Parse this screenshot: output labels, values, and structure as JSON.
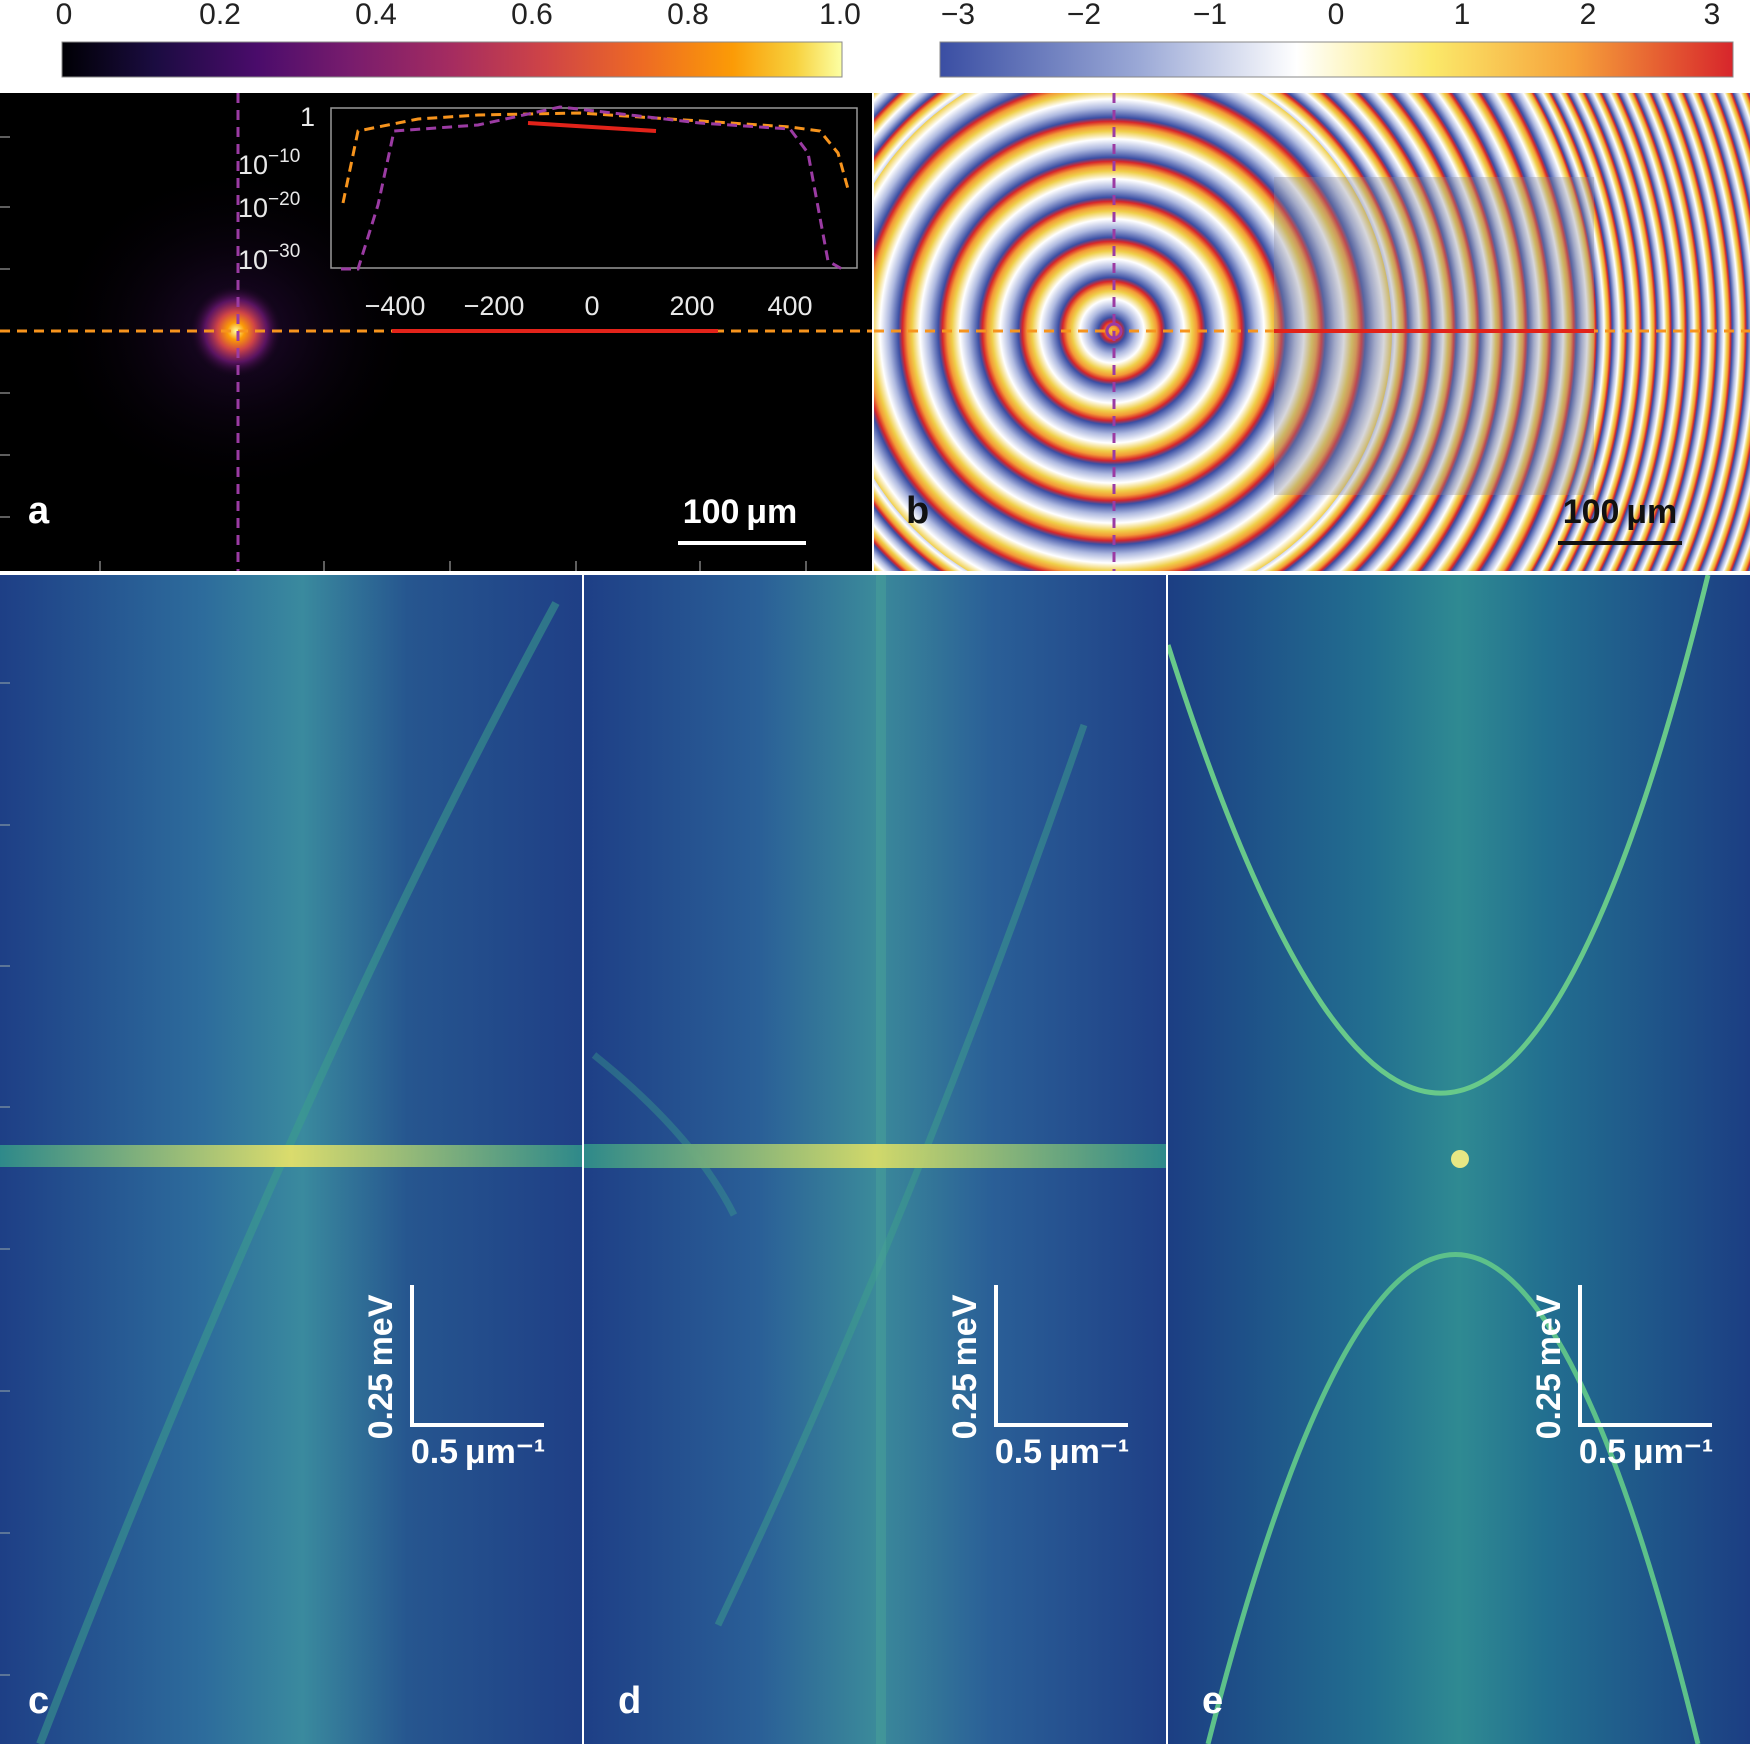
{
  "colorbars": {
    "amplitude": {
      "ticks": [
        "0",
        "0.2",
        "0.4",
        "0.6",
        "0.8",
        "1.0"
      ],
      "palette": "inferno"
    },
    "phase": {
      "ticks": [
        "−3",
        "−2",
        "−1",
        "0",
        "1",
        "2",
        "3"
      ],
      "palette": "blue-white-yellow-red"
    }
  },
  "panels": {
    "a": {
      "label": "a",
      "scalebar": "100 μm",
      "inset": {
        "y_ticks": [
          {
            "base": "1",
            "exp": ""
          },
          {
            "base": "10",
            "exp": "−10"
          },
          {
            "base": "10",
            "exp": "−20"
          },
          {
            "base": "10",
            "exp": "−30"
          }
        ],
        "x_ticks": [
          "−400",
          "−200",
          "0",
          "200",
          "400"
        ]
      }
    },
    "b": {
      "label": "b",
      "scalebar": "100 μm"
    },
    "c": {
      "label": "c",
      "energy_scale": "0.25 meV",
      "k_scale": "0.5 μm⁻¹"
    },
    "d": {
      "label": "d",
      "energy_scale": "0.25 meV",
      "k_scale": "0.5 μm⁻¹"
    },
    "e": {
      "label": "e",
      "energy_scale": "0.25 meV",
      "k_scale": "0.5 μm⁻¹"
    }
  },
  "colors": {
    "cut_horizontal": "#f7941d",
    "cut_vertical": "#9b3ba3",
    "highlight_line": "#e2231a",
    "spectrum_background": "#1f4f8f",
    "spectrum_peak": "#7fd08a"
  }
}
